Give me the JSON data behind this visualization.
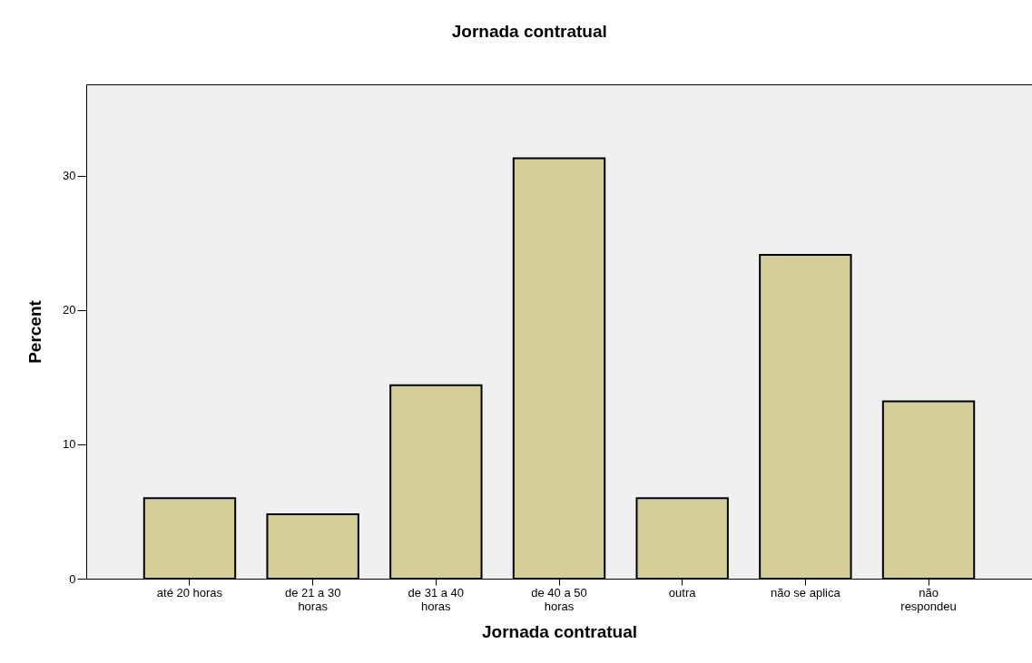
{
  "chart_data": {
    "type": "bar",
    "title": "Jornada contratual",
    "xlabel": "Jornada contratual",
    "ylabel": "Percent",
    "categories": [
      "até 20 horas",
      "de 21 a 30 horas",
      "de 31 a 40 horas",
      "de 40 a 50 horas",
      "outra",
      "não se aplica",
      "não respondeu"
    ],
    "values": [
      6.0,
      4.8,
      14.4,
      31.3,
      6.0,
      24.1,
      13.2
    ],
    "color": "#d3ce97",
    "ylim": [
      0,
      36.8
    ],
    "yticks": [
      0,
      10,
      20,
      30
    ],
    "grid": false
  }
}
